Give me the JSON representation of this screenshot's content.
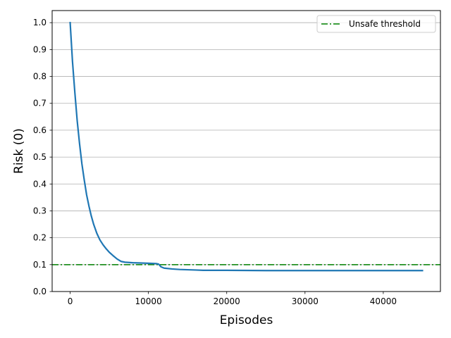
{
  "chart_data": {
    "type": "line",
    "title": "",
    "xlabel": "Episodes",
    "ylabel": "Risk (0)",
    "xlim": [
      -2300,
      47300
    ],
    "ylim": [
      0.0,
      1.045
    ],
    "xticks": [
      0,
      10000,
      20000,
      30000,
      40000
    ],
    "yticks": [
      0.0,
      0.1,
      0.2,
      0.3,
      0.4,
      0.5,
      0.6,
      0.7,
      0.8,
      0.9,
      1.0
    ],
    "grid": "horizontal",
    "legend": "top-right",
    "series": [
      {
        "color": "#1f77b4",
        "x": [
          0,
          300,
          600,
          900,
          1200,
          1500,
          1800,
          2100,
          2400,
          2700,
          3000,
          3400,
          3800,
          4200,
          4600,
          5000,
          5500,
          6000,
          6500,
          7000,
          8000,
          9000,
          10000,
          11000,
          11300,
          11600,
          12000,
          13000,
          14000,
          15000,
          16000,
          17000,
          18000,
          20000,
          25000,
          30000,
          35000,
          40000,
          45000
        ],
        "y": [
          1.0,
          0.855,
          0.74,
          0.635,
          0.55,
          0.475,
          0.415,
          0.36,
          0.318,
          0.281,
          0.25,
          0.217,
          0.192,
          0.174,
          0.159,
          0.146,
          0.133,
          0.121,
          0.112,
          0.109,
          0.107,
          0.106,
          0.105,
          0.104,
          0.102,
          0.092,
          0.087,
          0.084,
          0.082,
          0.081,
          0.08,
          0.079,
          0.079,
          0.079,
          0.078,
          0.078,
          0.078,
          0.078,
          0.078
        ]
      }
    ],
    "threshold": {
      "name": "Unsafe threshold",
      "y": 0.1,
      "color": "#008000"
    }
  }
}
